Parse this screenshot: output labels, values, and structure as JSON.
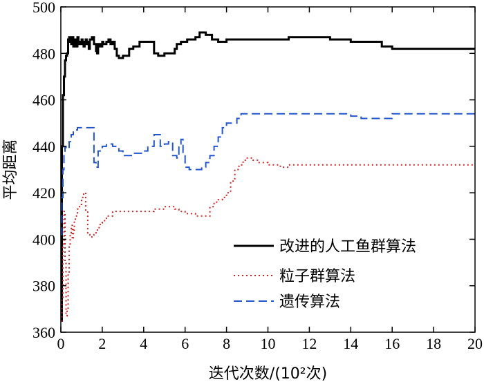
{
  "chart_data": {
    "type": "line",
    "title": "",
    "xlabel": "迭代次数/(10²次)",
    "ylabel": "平均距离",
    "xlim": [
      0,
      20
    ],
    "ylim": [
      360,
      500
    ],
    "xticks": [
      0,
      2,
      4,
      6,
      8,
      10,
      12,
      14,
      16,
      18,
      20
    ],
    "yticks": [
      360,
      380,
      400,
      420,
      440,
      460,
      480,
      500
    ],
    "legend_position": "lower-right",
    "grid": false,
    "series": [
      {
        "name": "改进的人工鱼群算法",
        "color": "#000000",
        "style": "solid",
        "x": [
          0,
          0.05,
          0.1,
          0.15,
          0.2,
          0.25,
          0.3,
          0.35,
          0.4,
          0.45,
          0.5,
          0.55,
          0.6,
          0.65,
          0.7,
          0.75,
          0.8,
          0.85,
          0.9,
          0.95,
          1.0,
          1.05,
          1.1,
          1.15,
          1.2,
          1.25,
          1.3,
          1.35,
          1.4,
          1.5,
          1.6,
          1.7,
          1.75,
          1.8,
          1.9,
          2.0,
          2.05,
          2.1,
          2.2,
          2.3,
          2.4,
          2.5,
          2.6,
          2.7,
          2.8,
          3.0,
          3.2,
          3.3,
          3.5,
          3.8,
          4.0,
          4.5,
          4.7,
          5.0,
          5.5,
          5.6,
          5.8,
          6.0,
          6.1,
          6.2,
          6.5,
          6.7,
          6.9,
          7.0,
          7.3,
          7.6,
          7.7,
          8.0,
          8.5,
          9.0,
          10.0,
          11.0,
          12.0,
          12.5,
          13.0,
          14.0,
          15.0,
          15.5,
          16.0,
          17.0,
          18.0,
          19.0,
          20.0
        ],
        "y": [
          365,
          440,
          462,
          470,
          477,
          479,
          480,
          486,
          487,
          485,
          484,
          487,
          483,
          486,
          485,
          483,
          487,
          484,
          485,
          484,
          486,
          485,
          483,
          484,
          486,
          484,
          485,
          482,
          486,
          487,
          484,
          481,
          480,
          484,
          483,
          485,
          484,
          484,
          485,
          486,
          484,
          485,
          482,
          479,
          478,
          479,
          479,
          482,
          483,
          485,
          485,
          480,
          479,
          480,
          482,
          484,
          485,
          485,
          486,
          486,
          487,
          489,
          489,
          488,
          486,
          485,
          485,
          486,
          486,
          486,
          486,
          487,
          487,
          487,
          486,
          485,
          485,
          483,
          482,
          482,
          482,
          482,
          482
        ]
      },
      {
        "name": "粒子群算法",
        "color": "#cc2222",
        "style": "dotted",
        "x": [
          0,
          0.05,
          0.1,
          0.15,
          0.2,
          0.25,
          0.3,
          0.35,
          0.4,
          0.45,
          0.5,
          0.55,
          0.6,
          0.65,
          0.7,
          0.8,
          0.9,
          1.0,
          1.1,
          1.2,
          1.3,
          1.4,
          1.5,
          1.6,
          1.7,
          1.8,
          1.9,
          2.0,
          2.2,
          2.5,
          3.0,
          3.5,
          4.0,
          4.5,
          5.0,
          5.5,
          5.7,
          6.0,
          6.5,
          7.0,
          7.2,
          7.4,
          7.6,
          7.8,
          8.0,
          8.2,
          8.4,
          8.6,
          8.8,
          9.0,
          9.2,
          9.5,
          10.0,
          10.3,
          10.6,
          11.0,
          12.0,
          14.0,
          16.0,
          18.0,
          20.0
        ],
        "y": [
          365,
          375,
          398,
          412,
          390,
          367,
          370,
          385,
          398,
          402,
          406,
          400,
          404,
          408,
          410,
          413,
          415,
          418,
          420,
          412,
          402,
          401,
          401,
          402,
          404,
          405,
          407,
          408,
          410,
          412,
          412,
          412,
          412,
          413,
          414,
          413,
          412,
          411,
          410,
          410,
          414,
          416,
          417,
          418,
          420,
          425,
          430,
          432,
          434,
          435,
          434,
          433,
          432,
          432,
          431,
          432,
          432,
          432,
          432,
          432,
          432
        ]
      },
      {
        "name": "遗传算法",
        "color": "#2255cc",
        "style": "dashed",
        "x": [
          0,
          0.05,
          0.1,
          0.15,
          0.2,
          0.25,
          0.3,
          0.4,
          0.5,
          0.6,
          0.8,
          1.0,
          1.2,
          1.4,
          1.6,
          1.7,
          1.8,
          1.9,
          2.0,
          2.2,
          2.5,
          2.8,
          3.0,
          3.5,
          4.0,
          4.2,
          4.5,
          4.8,
          5.0,
          5.2,
          5.4,
          5.5,
          5.6,
          5.7,
          5.8,
          5.9,
          6.0,
          6.2,
          6.5,
          6.8,
          7.0,
          7.2,
          7.4,
          7.6,
          7.8,
          8.0,
          8.5,
          8.7,
          9.0,
          10.0,
          12.0,
          14.0,
          14.5,
          15.0,
          15.5,
          16.0,
          18.0,
          20.0
        ],
        "y": [
          402,
          418,
          430,
          437,
          440,
          439,
          439,
          442,
          445,
          447,
          448,
          448,
          448,
          448,
          433,
          431,
          438,
          438,
          440,
          441,
          440,
          438,
          436,
          437,
          438,
          440,
          445,
          440,
          441,
          442,
          436,
          436,
          435,
          441,
          443,
          437,
          431,
          430,
          430,
          431,
          433,
          436,
          440,
          444,
          448,
          450,
          452,
          454,
          454,
          454,
          454,
          453,
          452,
          452,
          452,
          454,
          454,
          454
        ]
      }
    ]
  }
}
